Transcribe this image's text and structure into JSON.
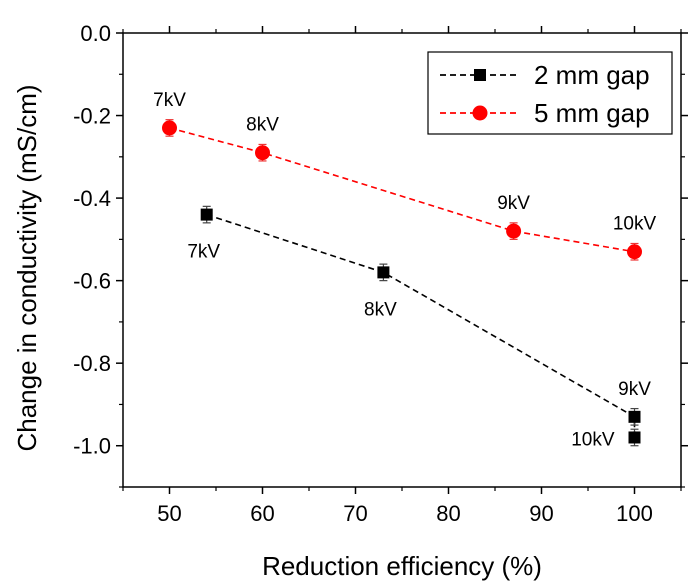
{
  "chart_data": {
    "type": "scatter",
    "xlabel": "Reduction efficiency (%)",
    "ylabel": "Change in conductivity (mS/cm)",
    "xlim": [
      45,
      105
    ],
    "ylim": [
      -1.1,
      0.0
    ],
    "x_ticks": [
      50,
      60,
      70,
      80,
      90,
      100
    ],
    "y_ticks": [
      0.0,
      -0.2,
      -0.4,
      -0.6,
      -0.8,
      -1.0
    ],
    "x_tick_labels": [
      "50",
      "60",
      "70",
      "80",
      "90",
      "100"
    ],
    "y_tick_labels": [
      "0.0",
      "-0.2",
      "-0.4",
      "-0.6",
      "-0.8",
      "-1.0"
    ],
    "legend_position": "top-right",
    "grid": false,
    "series": [
      {
        "name": "2 mm gap",
        "color": "#000000",
        "marker": "square",
        "line_style": "dashed",
        "x": [
          54,
          73,
          100,
          100
        ],
        "y": [
          -0.44,
          -0.58,
          -0.93,
          -0.98
        ],
        "errors": [
          0.02,
          0.02,
          0.02,
          0.02
        ],
        "labels": [
          "7kV",
          "8kV",
          "9kV",
          "10kV"
        ],
        "label_positions": [
          "below",
          "below",
          "above",
          "left"
        ]
      },
      {
        "name": "5 mm gap",
        "color": "#ff0000",
        "marker": "circle",
        "line_style": "dashed",
        "x": [
          50,
          60,
          87,
          100
        ],
        "y": [
          -0.23,
          -0.29,
          -0.48,
          -0.53
        ],
        "errors": [
          0.02,
          0.02,
          0.02,
          0.02
        ],
        "labels": [
          "7kV",
          "8kV",
          "9kV",
          "10kV"
        ],
        "label_positions": [
          "above",
          "above",
          "above",
          "above"
        ]
      }
    ]
  }
}
